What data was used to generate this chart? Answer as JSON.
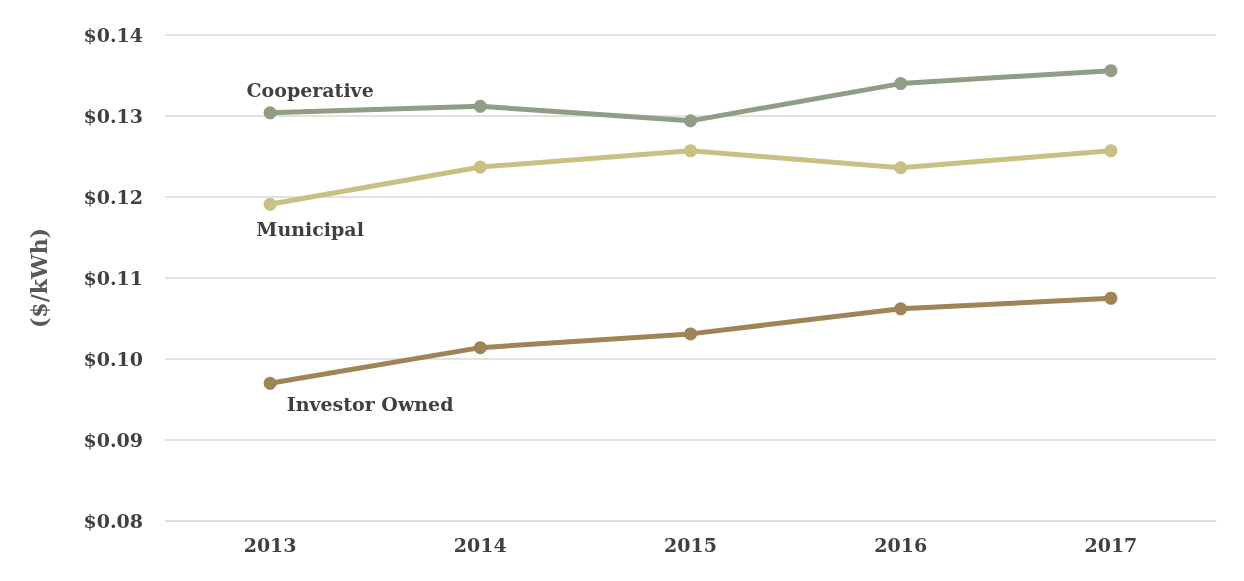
{
  "chart_data": {
    "type": "line",
    "ylabel": "($/kWh)",
    "categories": [
      "2013",
      "2014",
      "2015",
      "2016",
      "2017"
    ],
    "series": [
      {
        "name": "Cooperative",
        "color": "#8f9e85",
        "values": [
          0.1304,
          0.1312,
          0.1294,
          0.134,
          0.1356
        ]
      },
      {
        "name": "Municipal",
        "color": "#c9c083",
        "values": [
          0.1191,
          0.1237,
          0.1257,
          0.1236,
          0.1257
        ]
      },
      {
        "name": "Investor Owned",
        "color": "#a08457",
        "values": [
          0.097,
          0.1014,
          0.1031,
          0.1062,
          0.1075
        ]
      }
    ],
    "ylim": [
      0.08,
      0.14
    ],
    "yticks": [
      {
        "value": 0.08,
        "label": "$0.08"
      },
      {
        "value": 0.09,
        "label": "$0.09"
      },
      {
        "value": 0.1,
        "label": "$0.10"
      },
      {
        "value": 0.11,
        "label": "$0.11"
      },
      {
        "value": 0.12,
        "label": "$0.12"
      },
      {
        "value": 0.13,
        "label": "$0.13"
      },
      {
        "value": 0.14,
        "label": "$0.14"
      }
    ],
    "grid": "y",
    "legend": false,
    "marker": "circle",
    "line_style": "solid"
  }
}
